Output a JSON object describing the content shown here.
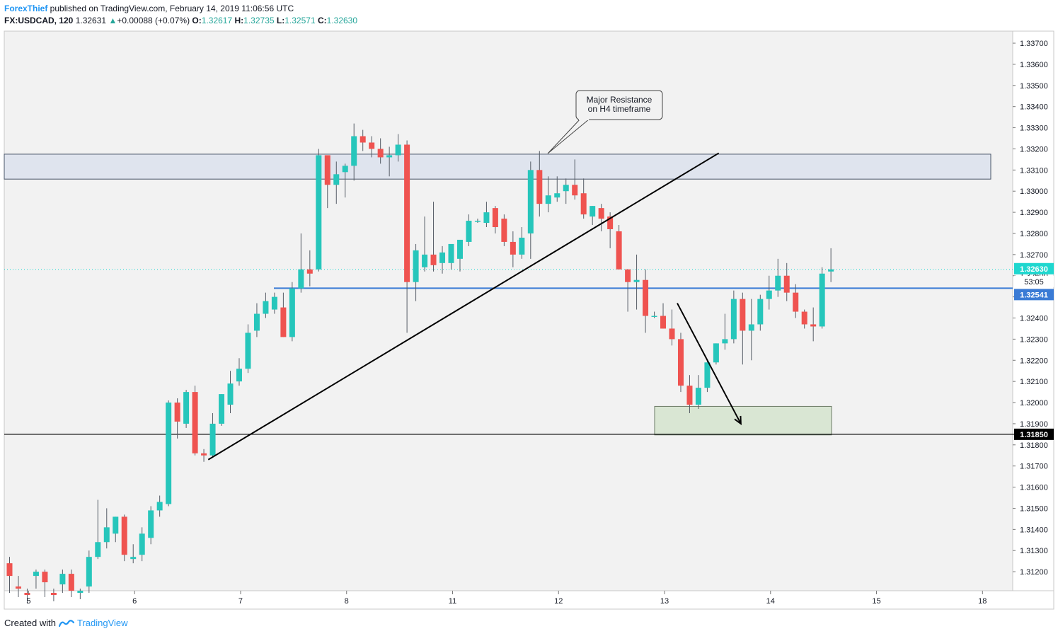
{
  "header": {
    "author": "ForexThief",
    "published": " published on TradingView.com, February 14, 2019 11:06:56 UTC",
    "symbol": "FX:USDCAD, 120",
    "last": "1.32631",
    "up_arrow": "▲",
    "change": "+0.00088 (+0.07%)",
    "o_label": "O:",
    "o": "1.32617",
    "h_label": "H:",
    "h": "1.32735",
    "l_label": "L:",
    "l": "1.32571",
    "c_label": "C:",
    "c": "1.32630"
  },
  "footer": {
    "created_with": "Created with",
    "brand": "TradingView"
  },
  "colors": {
    "up": "#26c6bb",
    "down": "#ef5350",
    "pane": "#f2f2f2",
    "resistance_fill": "#dfe4ee",
    "support_fill": "#d9e6d3",
    "level_blue": "#3a7bd5",
    "price_cyan": "#1fd7cf"
  },
  "chart_data": {
    "type": "candlestick",
    "title": "FX:USDCAD, 120",
    "ylim": [
      1.3111,
      1.33757
    ],
    "x_ticks": [
      {
        "label": "5",
        "i": 2
      },
      {
        "label": "6",
        "i": 14
      },
      {
        "label": "7",
        "i": 26
      },
      {
        "label": "8",
        "i": 38
      },
      {
        "label": "11",
        "i": 50
      },
      {
        "label": "12",
        "i": 62
      },
      {
        "label": "13",
        "i": 74
      },
      {
        "label": "14",
        "i": 86
      },
      {
        "label": "15",
        "i": 98
      },
      {
        "label": "18",
        "i": 110
      }
    ],
    "y_ticks": [
      "1.31200",
      "1.31300",
      "1.31400",
      "1.31500",
      "1.31600",
      "1.31700",
      "1.31800",
      "1.31900",
      "1.32000",
      "1.32100",
      "1.32200",
      "1.32300",
      "1.32400",
      "1.32500",
      "1.32600",
      "1.32700",
      "1.32800",
      "1.32900",
      "1.33000",
      "1.33100",
      "1.33200",
      "1.33300",
      "1.33400",
      "1.33500",
      "1.33600",
      "1.33700"
    ],
    "ohlc": [
      [
        1.3124,
        1.3127,
        1.311,
        1.3118
      ],
      [
        1.3113,
        1.3118,
        1.3108,
        1.3112
      ],
      [
        1.311,
        1.3112,
        1.3105,
        1.3109
      ],
      [
        1.3118,
        1.3121,
        1.3112,
        1.312
      ],
      [
        1.312,
        1.3121,
        1.3108,
        1.3115
      ],
      [
        1.311,
        1.3112,
        1.3106,
        1.3109
      ],
      [
        1.3114,
        1.3121,
        1.311,
        1.3119
      ],
      [
        1.3119,
        1.3121,
        1.3108,
        1.3111
      ],
      [
        1.311,
        1.3112,
        1.3107,
        1.3111
      ],
      [
        1.3113,
        1.313,
        1.311,
        1.3127
      ],
      [
        1.3127,
        1.3154,
        1.3126,
        1.3134
      ],
      [
        1.3134,
        1.315,
        1.3131,
        1.3141
      ],
      [
        1.3138,
        1.3146,
        1.3134,
        1.3146
      ],
      [
        1.3146,
        1.3147,
        1.3125,
        1.3128
      ],
      [
        1.3126,
        1.3133,
        1.3124,
        1.3127
      ],
      [
        1.3128,
        1.3141,
        1.3125,
        1.3138
      ],
      [
        1.3136,
        1.3151,
        1.3133,
        1.3149
      ],
      [
        1.3149,
        1.3156,
        1.3146,
        1.3153
      ],
      [
        1.3152,
        1.3201,
        1.3151,
        1.32
      ],
      [
        1.32,
        1.3202,
        1.3183,
        1.3191
      ],
      [
        1.319,
        1.3206,
        1.3188,
        1.3205
      ],
      [
        1.3205,
        1.3208,
        1.3175,
        1.3176
      ],
      [
        1.3176,
        1.3178,
        1.3172,
        1.3175
      ],
      [
        1.3175,
        1.3195,
        1.3174,
        1.319
      ],
      [
        1.319,
        1.3204,
        1.3189,
        1.3204
      ],
      [
        1.3199,
        1.3215,
        1.3195,
        1.3209
      ],
      [
        1.321,
        1.3221,
        1.3208,
        1.3216
      ],
      [
        1.3216,
        1.3237,
        1.3214,
        1.3233
      ],
      [
        1.3234,
        1.3247,
        1.3231,
        1.3242
      ],
      [
        1.3242,
        1.3252,
        1.324,
        1.3248
      ],
      [
        1.3244,
        1.3252,
        1.3242,
        1.325
      ],
      [
        1.3245,
        1.3252,
        1.3231,
        1.3231
      ],
      [
        1.3231,
        1.3257,
        1.3229,
        1.3254
      ],
      [
        1.3254,
        1.328,
        1.3252,
        1.3263
      ],
      [
        1.3263,
        1.3272,
        1.3255,
        1.3261
      ],
      [
        1.3263,
        1.332,
        1.3262,
        1.3317
      ],
      [
        1.3317,
        1.3316,
        1.3292,
        1.3303
      ],
      [
        1.3303,
        1.3314,
        1.3294,
        1.3308
      ],
      [
        1.3309,
        1.3313,
        1.3297,
        1.3312
      ],
      [
        1.3312,
        1.3332,
        1.3305,
        1.3326
      ],
      [
        1.3326,
        1.3329,
        1.3319,
        1.3323
      ],
      [
        1.3323,
        1.3326,
        1.3316,
        1.332
      ],
      [
        1.332,
        1.3325,
        1.3313,
        1.3316
      ],
      [
        1.3316,
        1.3321,
        1.3307,
        1.3317
      ],
      [
        1.3317,
        1.3327,
        1.3314,
        1.3322
      ],
      [
        1.3322,
        1.3324,
        1.3233,
        1.3257
      ],
      [
        1.3257,
        1.3275,
        1.3248,
        1.3272
      ],
      [
        1.3264,
        1.3288,
        1.3262,
        1.327
      ],
      [
        1.327,
        1.3295,
        1.3262,
        1.3265
      ],
      [
        1.3266,
        1.3274,
        1.3261,
        1.3271
      ],
      [
        1.3266,
        1.3273,
        1.3263,
        1.3275
      ],
      [
        1.3268,
        1.3276,
        1.3262,
        1.3277
      ],
      [
        1.3276,
        1.3289,
        1.3274,
        1.3286
      ],
      [
        1.3286,
        1.3287,
        1.3285,
        1.3286
      ],
      [
        1.3285,
        1.3295,
        1.3283,
        1.329
      ],
      [
        1.3292,
        1.3293,
        1.328,
        1.3283
      ],
      [
        1.3287,
        1.3289,
        1.3274,
        1.3276
      ],
      [
        1.3276,
        1.3281,
        1.3264,
        1.327
      ],
      [
        1.327,
        1.3283,
        1.3268,
        1.3278
      ],
      [
        1.328,
        1.3314,
        1.3268,
        1.331
      ],
      [
        1.331,
        1.3319,
        1.3288,
        1.3294
      ],
      [
        1.3294,
        1.3307,
        1.329,
        1.3298
      ],
      [
        1.3297,
        1.3307,
        1.3295,
        1.3299
      ],
      [
        1.33,
        1.3306,
        1.3294,
        1.3303
      ],
      [
        1.3303,
        1.3315,
        1.3296,
        1.3298
      ],
      [
        1.3299,
        1.3306,
        1.3287,
        1.3289
      ],
      [
        1.3288,
        1.3293,
        1.3284,
        1.3293
      ],
      [
        1.3292,
        1.3294,
        1.3281,
        1.3287
      ],
      [
        1.3288,
        1.329,
        1.3273,
        1.3282
      ],
      [
        1.3281,
        1.3284,
        1.3263,
        1.3263
      ],
      [
        1.3263,
        1.3263,
        1.3243,
        1.3257
      ],
      [
        1.3257,
        1.327,
        1.3244,
        1.3258
      ],
      [
        1.3258,
        1.3263,
        1.3233,
        1.3241
      ],
      [
        1.3241,
        1.3243,
        1.324,
        1.3241
      ],
      [
        1.3241,
        1.3247,
        1.3235,
        1.3235
      ],
      [
        1.3235,
        1.3244,
        1.3227,
        1.323
      ],
      [
        1.323,
        1.3233,
        1.3205,
        1.3208
      ],
      [
        1.3208,
        1.3213,
        1.3195,
        1.3199
      ],
      [
        1.3199,
        1.3213,
        1.3197,
        1.3207
      ],
      [
        1.3207,
        1.322,
        1.3205,
        1.3219
      ],
      [
        1.3219,
        1.3228,
        1.3218,
        1.3228
      ],
      [
        1.3228,
        1.3242,
        1.3225,
        1.323
      ],
      [
        1.323,
        1.3253,
        1.3228,
        1.3249
      ],
      [
        1.3249,
        1.3252,
        1.3218,
        1.3234
      ],
      [
        1.3234,
        1.3249,
        1.322,
        1.3237
      ],
      [
        1.3237,
        1.3251,
        1.3234,
        1.3249
      ],
      [
        1.3249,
        1.326,
        1.3244,
        1.3253
      ],
      [
        1.3253,
        1.3268,
        1.325,
        1.326
      ],
      [
        1.326,
        1.3266,
        1.3248,
        1.3252
      ],
      [
        1.3252,
        1.3256,
        1.324,
        1.3243
      ],
      [
        1.3243,
        1.3244,
        1.3235,
        1.3237
      ],
      [
        1.3237,
        1.3245,
        1.3229,
        1.3236
      ],
      [
        1.3236,
        1.3264,
        1.3235,
        1.3261
      ],
      [
        1.3262,
        1.3273,
        1.3257,
        1.3263
      ]
    ],
    "levels": {
      "resistance_zone": [
        1.33057,
        1.33175
      ],
      "support_zone": [
        1.31847,
        1.31982
      ],
      "blue_level": 1.32541,
      "black_level": 1.3185,
      "current": 1.3263
    },
    "trendline": {
      "from": [
        22.5,
        1.3173
      ],
      "to": [
        80.3,
        1.3318
      ]
    },
    "down_arrow": {
      "from": [
        75.6,
        1.3247
      ],
      "to": [
        82.8,
        1.319
      ]
    },
    "price_labels": {
      "current": "1.32630",
      "countdown": "53:05",
      "blue": "1.32541",
      "black": "1.31850"
    },
    "annotation": "Major Resistance\non H4 timeframe",
    "annotation_lines": [
      "Major Resistance",
      "on H4 timeframe"
    ]
  }
}
